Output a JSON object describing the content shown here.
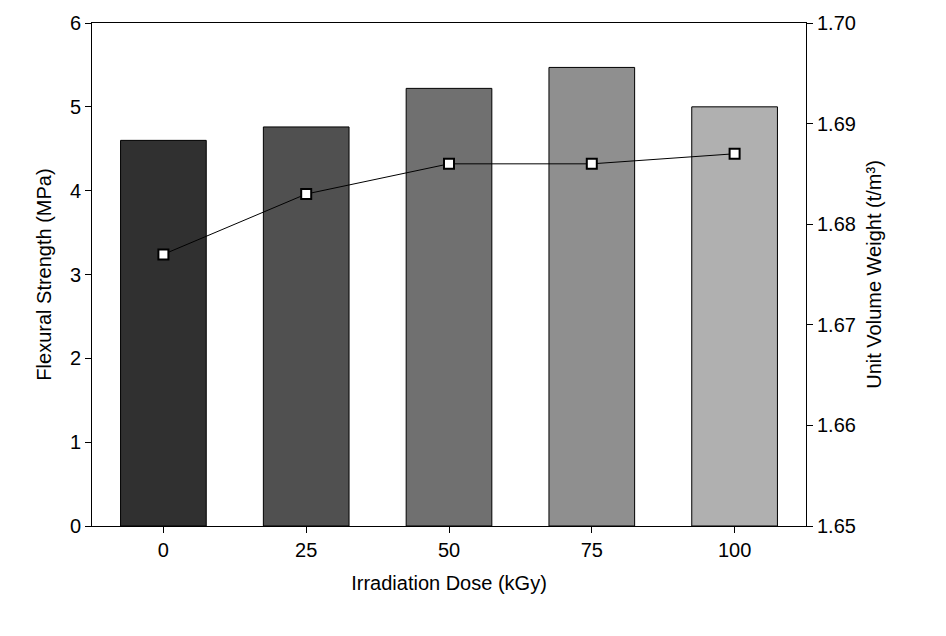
{
  "chart_data": {
    "type": "bar",
    "x_label": "Irradiation Dose (kGy)",
    "y_label": "Flexural Strength (MPa)",
    "y2_label": "Unit Volume Weight (t/m³)",
    "categories": [
      "0",
      "25",
      "50",
      "75",
      "100"
    ],
    "series": [
      {
        "type": "bar",
        "colors": [
          "#303030",
          "#505050",
          "#707070",
          "#8f8f8f",
          "#b0b0b0"
        ],
        "values": [
          4.6,
          4.76,
          5.22,
          5.47,
          5.0
        ]
      },
      {
        "type": "line",
        "axis": "y2",
        "color": "#000000",
        "marker": "square",
        "line_style": "solid",
        "values": [
          1.677,
          1.683,
          1.686,
          1.686,
          1.687
        ]
      }
    ],
    "ylim": [
      0,
      6
    ],
    "yticks": [
      0,
      1,
      2,
      3,
      4,
      5,
      6
    ],
    "y2lim": [
      1.65,
      1.7
    ],
    "y2ticks": [
      1.65,
      1.66,
      1.67,
      1.68,
      1.69,
      {
        "value": 1.7,
        "label": "1.70"
      }
    ],
    "grid": false
  }
}
